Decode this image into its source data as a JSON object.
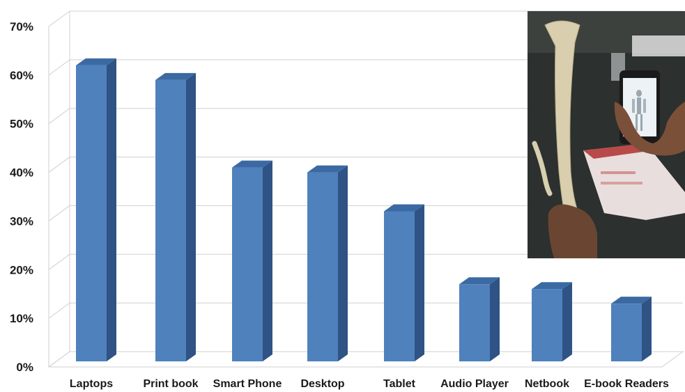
{
  "chart_data": {
    "type": "bar",
    "categories": [
      "Laptops",
      "Print book",
      "Smart Phone",
      "Desktop",
      "Tablet",
      "Audio Player",
      "Netbook",
      "E-book Readers"
    ],
    "values": [
      62,
      59,
      41,
      40,
      32,
      17,
      16,
      13
    ],
    "ylim": [
      0,
      70
    ],
    "yticks": [
      "0%",
      "10%",
      "20%",
      "30%",
      "40%",
      "50%",
      "60%",
      "70%"
    ],
    "grid": true,
    "style": "3d-column",
    "bar_color": "#4F81BD",
    "bar_side_color": "#2E5384",
    "bar_top_color": "#3B6AA3"
  },
  "inset_photo": {
    "description_icon": "photo-hand-holding-femur-and-phone-anatomy-app"
  }
}
